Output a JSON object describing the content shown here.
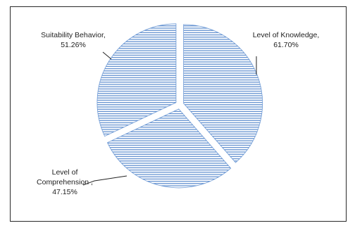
{
  "colors": {
    "hatch": "#4a7fc8",
    "edge": "#6f9bd6",
    "leader": "#222222",
    "background": "#ffffff",
    "frame": "#2a2a2a"
  },
  "chart_data": {
    "type": "pie",
    "style": "horizontal-hatch, exploded slices",
    "legend": "none (labels beside slices)",
    "slices": [
      {
        "label_lines": [
          "Level of Knowledge,",
          "61.70%"
        ],
        "category": "Level of Knowledge",
        "value": 61.7
      },
      {
        "label_lines": [
          "Level of",
          "Comprehension ,",
          "47.15%"
        ],
        "category": "Level of Comprehension",
        "value": 47.15
      },
      {
        "label_lines": [
          "Suitability Behavior,",
          "51.26%"
        ],
        "category": "Suitability Behavior",
        "value": 51.26
      }
    ]
  }
}
